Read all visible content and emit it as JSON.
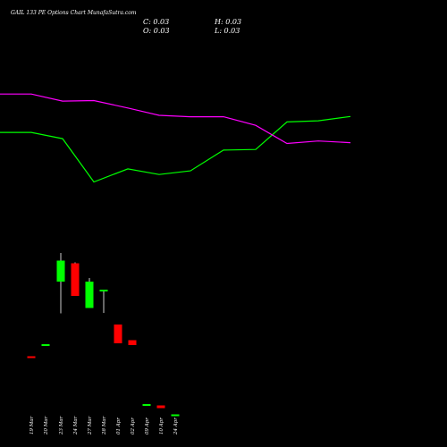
{
  "header": {
    "title": "GAIL 133 PE Options Chart MunafaSutra.com",
    "c_label": "C: 0.03",
    "o_label": "O: 0.03",
    "h_label": "H: 0.03",
    "l_label": "L: 0.03"
  },
  "chart_data": {
    "type": "candlestick",
    "categories": [
      "19 Mar",
      "20 Mar",
      "23 Mar",
      "24 Mar",
      "27 Mar",
      "28 Mar",
      "01 Apr",
      "02 Apr",
      "09 Apr",
      "10 Apr",
      "24 Apr"
    ],
    "candles": [
      {
        "x": "19 Mar",
        "open": 1.33,
        "high": 1.33,
        "low": 1.31,
        "close": 1.31,
        "color": "red"
      },
      {
        "x": "20 Mar",
        "open": 1.58,
        "high": 1.6,
        "low": 1.58,
        "close": 1.6,
        "color": "green"
      },
      {
        "x": "23 Mar",
        "open": 3.0,
        "high": 3.64,
        "low": 2.29,
        "close": 3.47,
        "color": "green"
      },
      {
        "x": "24 Mar",
        "open": 3.41,
        "high": 3.43,
        "low": 2.68,
        "close": 2.68,
        "color": "red"
      },
      {
        "x": "27 Mar",
        "open": 2.41,
        "high": 3.08,
        "low": 2.41,
        "close": 3.0,
        "color": "green"
      },
      {
        "x": "28 Mar",
        "open": 2.78,
        "high": 2.82,
        "low": 2.3,
        "close": 2.82,
        "color": "green"
      },
      {
        "x": "01 Apr",
        "open": 2.04,
        "high": 2.04,
        "low": 1.62,
        "close": 1.62,
        "color": "red"
      },
      {
        "x": "02 Apr",
        "open": 1.69,
        "high": 1.69,
        "low": 1.58,
        "close": 1.58,
        "color": "red"
      },
      {
        "x": "09 Apr",
        "open": 0.26,
        "high": 0.26,
        "low": 0.26,
        "close": 0.26,
        "color": "green"
      },
      {
        "x": "10 Apr",
        "open": 0.23,
        "high": 0.23,
        "low": 0.17,
        "close": 0.17,
        "color": "red"
      },
      {
        "x": "24 Apr",
        "open": 0.03,
        "high": 0.03,
        "low": 0.03,
        "close": 0.03,
        "color": "green"
      }
    ],
    "lines": [
      {
        "color": "#00ff00",
        "values": [
          38,
          38,
          40,
          48,
          45,
          46,
          45,
          40,
          40,
          33,
          32
        ]
      },
      {
        "color": "#ff00ff",
        "values": [
          24,
          24,
          26,
          26,
          28,
          31,
          30,
          30,
          33,
          39,
          38
        ]
      }
    ],
    "line_x": [
      0,
      35,
      70,
      105,
      140,
      178,
      212,
      250,
      286,
      322,
      357,
      392
    ],
    "green_line": [
      0,
      3.83,
      3.83,
      3.61,
      2.09,
      2.55,
      2.35,
      2.48,
      3.21,
      3.23,
      4.2,
      4.24,
      4.39
    ],
    "magenta_line": [
      0,
      5.18,
      5.18,
      4.93,
      4.95,
      4.69,
      4.43,
      4.38,
      4.38,
      4.08,
      3.44,
      3.53,
      3.47
    ],
    "ylim_candles": [
      0,
      4.2
    ],
    "lines_ylim": [
      0,
      6.6
    ],
    "colors": {
      "background": "#000000",
      "up": "#00ff00",
      "down": "#ff0000",
      "ma_green": "#00ff00",
      "ma_magenta": "#ff00ff"
    }
  }
}
